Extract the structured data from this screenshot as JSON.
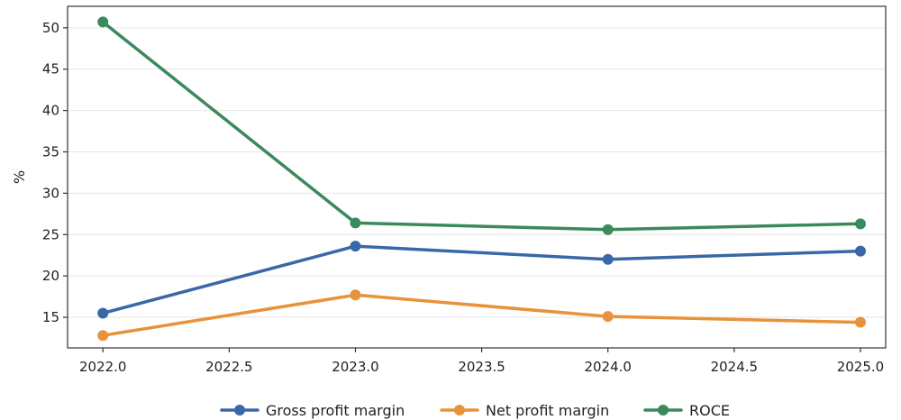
{
  "chart_data": {
    "type": "line",
    "title": "",
    "xlabel": "",
    "ylabel": "%",
    "xlim": [
      2021.86,
      2025.1
    ],
    "ylim": [
      11.3,
      52.6
    ],
    "x_ticks": [
      "2022.0",
      "2022.5",
      "2023.0",
      "2023.5",
      "2024.0",
      "2024.5",
      "2025.0"
    ],
    "y_ticks": [
      "15",
      "20",
      "25",
      "30",
      "35",
      "40",
      "45",
      "50"
    ],
    "grid": "horizontal",
    "legend_position": "bottom-center",
    "x": [
      2022,
      2023,
      2024,
      2025
    ],
    "series": [
      {
        "name": "Gross profit margin",
        "color": "#3a67a8",
        "values": [
          15.5,
          23.6,
          22.0,
          23.0
        ]
      },
      {
        "name": "Net profit margin",
        "color": "#e8923a",
        "values": [
          12.8,
          17.7,
          15.1,
          14.4
        ]
      },
      {
        "name": "ROCE",
        "color": "#3a8a5e",
        "values": [
          50.7,
          26.4,
          25.6,
          26.3
        ]
      }
    ]
  }
}
